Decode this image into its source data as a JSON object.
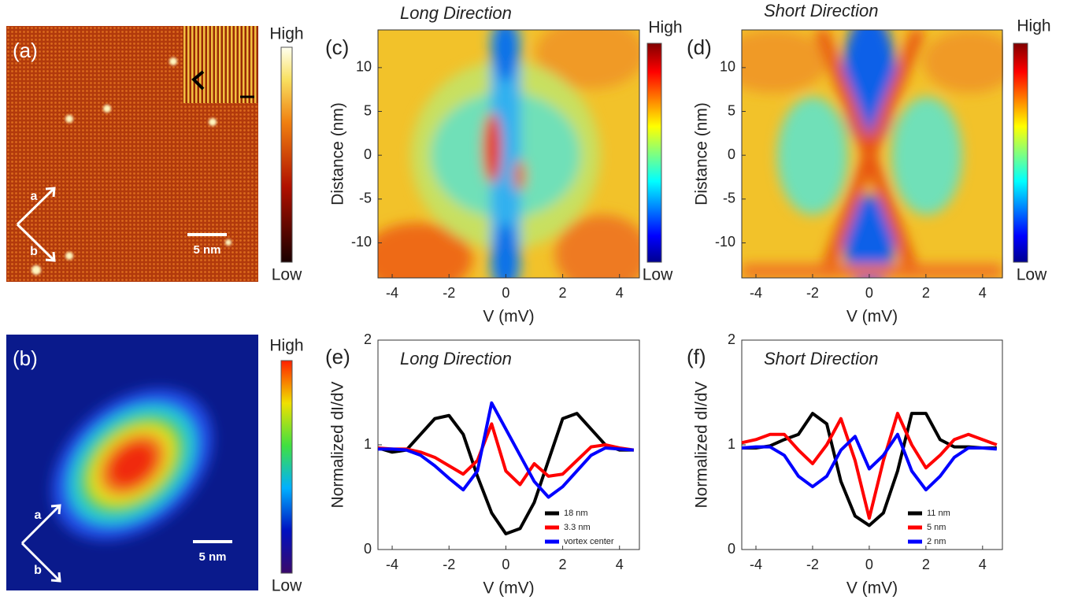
{
  "chart_data": [
    {
      "type": "image",
      "panel": "(a)",
      "colorbar": [
        "High",
        "Low"
      ],
      "axes_labels": [
        "a",
        "b"
      ],
      "scale_bar": "5 nm"
    },
    {
      "type": "image",
      "panel": "(b)",
      "colorbar": [
        "High",
        "Low"
      ],
      "axes_labels": [
        "a",
        "b"
      ],
      "scale_bar": "5 nm"
    },
    {
      "type": "heatmap",
      "panel": "(c)",
      "title": "Long Direction",
      "xlabel": "V (mV)",
      "ylabel": "Distance (nm)",
      "colorbar": [
        "High",
        "Low"
      ],
      "xlim": [
        -4.5,
        4.7
      ],
      "xticks": [
        -4,
        -2,
        0,
        2,
        4
      ],
      "ylim": [
        -14,
        14.3
      ],
      "yticks": [
        -10,
        -5,
        0,
        5,
        10
      ]
    },
    {
      "type": "heatmap",
      "panel": "(d)",
      "title": "Short Direction",
      "xlabel": "V (mV)",
      "ylabel": "Distance (nm)",
      "colorbar": [
        "High",
        "Low"
      ],
      "xlim": [
        -4.5,
        4.7
      ],
      "xticks": [
        -4,
        -2,
        0,
        2,
        4
      ],
      "ylim": [
        -14,
        14.3
      ],
      "yticks": [
        -10,
        -5,
        0,
        5,
        10
      ]
    },
    {
      "type": "line",
      "panel": "(e)",
      "title": "Long Direction",
      "xlabel": "V (mV)",
      "ylabel": "Normalized dI/dV",
      "xlim": [
        -4.5,
        4.7
      ],
      "xticks": [
        -4,
        -2,
        0,
        2,
        4
      ],
      "ylim": [
        0,
        2
      ],
      "yticks": [
        0,
        1,
        2
      ],
      "legend": "lower right",
      "x": [
        -4.5,
        -4,
        -3.5,
        -3,
        -2.5,
        -2,
        -1.5,
        -1,
        -0.5,
        0,
        0.5,
        1,
        1.5,
        2,
        2.5,
        3,
        3.5,
        4,
        4.5
      ],
      "series": [
        {
          "name": "18 nm",
          "color": "#000000",
          "values": [
            0.97,
            0.93,
            0.95,
            1.1,
            1.25,
            1.28,
            1.1,
            0.7,
            0.35,
            0.15,
            0.2,
            0.45,
            0.85,
            1.25,
            1.3,
            1.15,
            1.0,
            0.95,
            0.95
          ]
        },
        {
          "name": "3.3 nm",
          "color": "#ff0000",
          "values": [
            0.97,
            0.96,
            0.96,
            0.93,
            0.88,
            0.8,
            0.72,
            0.85,
            1.2,
            0.75,
            0.62,
            0.82,
            0.7,
            0.72,
            0.85,
            0.98,
            1.0,
            0.97,
            0.95
          ]
        },
        {
          "name": "vortex center",
          "color": "#0000ff",
          "values": [
            0.96,
            0.96,
            0.95,
            0.9,
            0.8,
            0.68,
            0.57,
            0.75,
            1.4,
            1.15,
            0.9,
            0.65,
            0.5,
            0.6,
            0.75,
            0.9,
            0.97,
            0.96,
            0.95
          ]
        }
      ]
    },
    {
      "type": "line",
      "panel": "(f)",
      "title": "Short Direction",
      "xlabel": "V (mV)",
      "ylabel": "Normalized dI/dV",
      "xlim": [
        -4.5,
        4.7
      ],
      "xticks": [
        -4,
        -2,
        0,
        2,
        4
      ],
      "ylim": [
        0,
        2
      ],
      "yticks": [
        0,
        1,
        2
      ],
      "legend": "lower right",
      "x": [
        -4.5,
        -4,
        -3.5,
        -3,
        -2.5,
        -2,
        -1.5,
        -1,
        -0.5,
        0,
        0.5,
        1,
        1.5,
        2,
        2.5,
        3,
        3.5,
        4,
        4.5
      ],
      "series": [
        {
          "name": "11 nm",
          "color": "#000000",
          "values": [
            0.97,
            0.97,
            0.99,
            1.05,
            1.1,
            1.3,
            1.2,
            0.65,
            0.32,
            0.23,
            0.35,
            0.75,
            1.3,
            1.3,
            1.05,
            0.98,
            0.98,
            0.97,
            0.97
          ]
        },
        {
          "name": "5 nm",
          "color": "#ff0000",
          "values": [
            1.02,
            1.05,
            1.1,
            1.1,
            0.95,
            0.82,
            1.0,
            1.25,
            0.85,
            0.3,
            0.85,
            1.3,
            1.0,
            0.78,
            0.9,
            1.05,
            1.1,
            1.05,
            1.0
          ]
        },
        {
          "name": "2 nm",
          "color": "#0000ff",
          "values": [
            0.97,
            0.98,
            0.98,
            0.9,
            0.7,
            0.6,
            0.7,
            0.95,
            1.08,
            0.77,
            0.9,
            1.1,
            0.75,
            0.57,
            0.7,
            0.88,
            0.97,
            0.97,
            0.96
          ]
        }
      ]
    }
  ]
}
